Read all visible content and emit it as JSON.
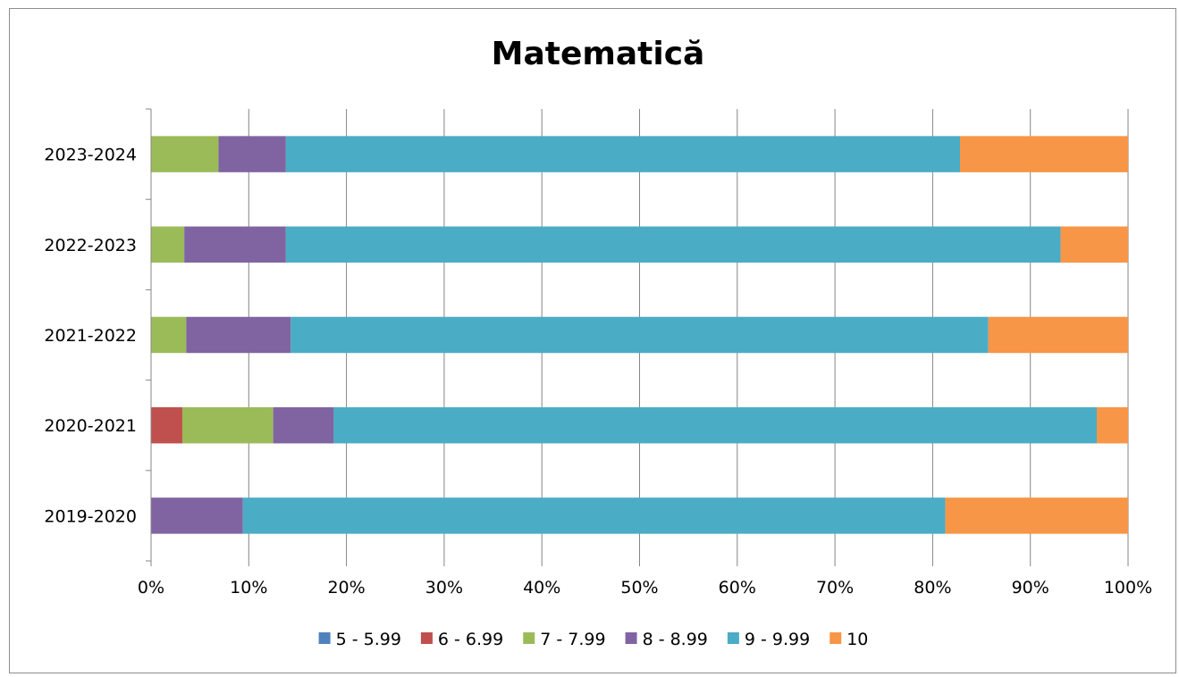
{
  "chart_data": {
    "type": "bar",
    "orientation": "horizontal",
    "stacked": "percent",
    "title": "Matematică",
    "xlabel": "",
    "ylabel": "",
    "xlim": [
      0,
      100
    ],
    "x_tick_labels": [
      "0%",
      "10%",
      "20%",
      "30%",
      "40%",
      "50%",
      "60%",
      "70%",
      "80%",
      "90%",
      "100%"
    ],
    "categories": [
      "2023-2024",
      "2022-2023",
      "2021-2022",
      "2020-2021",
      "2019-2020"
    ],
    "series": [
      {
        "name": "5 - 5.99",
        "color": "#4f81bd",
        "values": [
          0,
          0,
          0,
          0,
          0
        ]
      },
      {
        "name": "6 - 6.99",
        "color": "#c0504d",
        "values": [
          0,
          0,
          0,
          3.2,
          0
        ]
      },
      {
        "name": "7 - 7.99",
        "color": "#9bbb59",
        "values": [
          6.9,
          3.4,
          3.6,
          9.3,
          0
        ]
      },
      {
        "name": "8 - 8.99",
        "color": "#8064a2",
        "values": [
          6.9,
          10.4,
          10.7,
          6.2,
          9.4
        ]
      },
      {
        "name": "9 - 9.99",
        "color": "#4bacc6",
        "values": [
          69.0,
          79.3,
          71.4,
          78.1,
          71.9
        ]
      },
      {
        "name": "10",
        "color": "#f79646",
        "values": [
          17.2,
          6.9,
          14.3,
          3.2,
          18.7
        ]
      }
    ],
    "grid": true,
    "legend_position": "bottom"
  }
}
